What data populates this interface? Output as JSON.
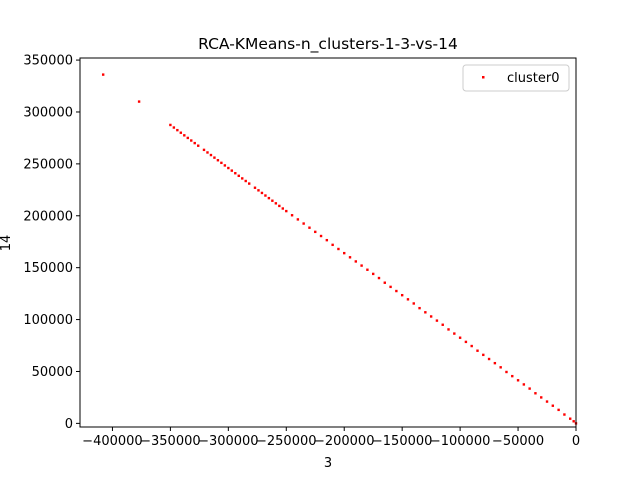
{
  "chart_data": {
    "type": "scatter",
    "title": "RCA-KMeans-n_clusters-1-3-vs-14",
    "xlabel": "3",
    "ylabel": "14",
    "xlim": [
      -428000,
      0
    ],
    "ylim": [
      -3500,
      352000
    ],
    "x_ticks": [
      -400000,
      -350000,
      -300000,
      -250000,
      -200000,
      -150000,
      -100000,
      -50000,
      0
    ],
    "x_tick_labels": [
      "−400000",
      "−350000",
      "−300000",
      "−250000",
      "−200000",
      "−150000",
      "−100000",
      "−50000",
      "0"
    ],
    "y_ticks": [
      0,
      50000,
      100000,
      150000,
      200000,
      250000,
      300000,
      350000
    ],
    "y_tick_labels": [
      "0",
      "50000",
      "100000",
      "150000",
      "200000",
      "250000",
      "300000",
      "350000"
    ],
    "grid": false,
    "legend_position": "top-right",
    "series": [
      {
        "name": "cluster0",
        "color": "#ff0000",
        "x": [
          -408000,
          -377000,
          -350000,
          -347000,
          -344000,
          -341000,
          -338000,
          -335000,
          -332000,
          -329000,
          -326000,
          -321000,
          -318000,
          -315000,
          -312000,
          -309000,
          -306000,
          -303000,
          -300000,
          -297000,
          -294000,
          -291000,
          -288000,
          -285000,
          -282000,
          -277000,
          -274000,
          -271000,
          -268000,
          -265000,
          -262000,
          -259000,
          -256000,
          -253000,
          -250000,
          -245000,
          -240000,
          -235000,
          -230000,
          -225000,
          -220000,
          -215000,
          -210000,
          -205000,
          -200000,
          -195000,
          -190000,
          -185000,
          -180000,
          -175000,
          -170000,
          -165000,
          -160000,
          -155000,
          -150000,
          -145000,
          -140000,
          -135000,
          -130000,
          -125000,
          -120000,
          -115000,
          -110000,
          -105000,
          -100000,
          -95000,
          -90000,
          -85000,
          -80000,
          -75000,
          -70000,
          -65000,
          -60000,
          -55000,
          -50000,
          -45000,
          -40000,
          -35000,
          -30000,
          -25000,
          -20000,
          -15000,
          -10000,
          -5000,
          -2000,
          0
        ],
        "y": [
          336000,
          310000,
          287500,
          285000,
          282500,
          280000,
          277500,
          275000,
          272500,
          270000,
          267500,
          263500,
          261000,
          258500,
          256000,
          253500,
          251000,
          248500,
          246000,
          243500,
          241000,
          238500,
          236000,
          233500,
          231000,
          227000,
          224500,
          222000,
          219500,
          217000,
          214500,
          212000,
          209500,
          207000,
          204500,
          200500,
          196500,
          192500,
          188500,
          184500,
          180500,
          176500,
          172000,
          168000,
          164000,
          160000,
          156000,
          152000,
          148000,
          144000,
          140000,
          135500,
          131500,
          127500,
          123500,
          119500,
          115500,
          111000,
          107000,
          103000,
          99000,
          95000,
          90500,
          86500,
          82500,
          78500,
          74500,
          70000,
          66000,
          62000,
          58000,
          54000,
          49500,
          45500,
          41500,
          37500,
          33500,
          29000,
          25000,
          21000,
          17000,
          13000,
          8500,
          4500,
          2000,
          0
        ]
      }
    ]
  }
}
